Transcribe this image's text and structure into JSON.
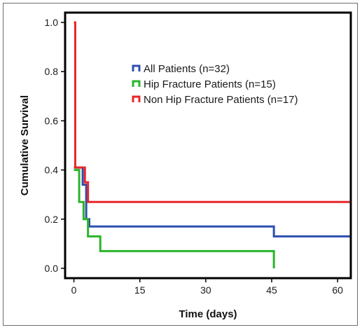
{
  "chart_data": {
    "type": "line",
    "title": "",
    "xlabel": "Time (days)",
    "ylabel": "Cumulative Survival",
    "xlim": [
      -2,
      63
    ],
    "ylim": [
      -0.04,
      1.04
    ],
    "x_ticks": [
      0,
      15,
      30,
      45,
      60
    ],
    "y_ticks": [
      0.0,
      0.2,
      0.4,
      0.6,
      0.8,
      1.0
    ],
    "y_tick_labels": [
      "0.0",
      "0.2",
      "0.4",
      "0.6",
      "0.8",
      "1.0"
    ],
    "grid": false,
    "legend_position": "top-right",
    "step": true,
    "series": [
      {
        "name": "All Patients (n=32)",
        "color": "#2d4fb0",
        "points": [
          [
            0,
            0.41
          ],
          [
            2,
            0.34
          ],
          [
            2.8,
            0.2
          ],
          [
            3.5,
            0.17
          ],
          [
            45.5,
            0.13
          ],
          [
            63,
            0.13
          ]
        ]
      },
      {
        "name": "Hip Fracture Patients (n=15)",
        "color": "#2ab52a",
        "points": [
          [
            0,
            0.4
          ],
          [
            1.2,
            0.27
          ],
          [
            2.2,
            0.2
          ],
          [
            3.2,
            0.13
          ],
          [
            6,
            0.07
          ],
          [
            45.5,
            0.07
          ],
          [
            45.5,
            0.0
          ]
        ]
      },
      {
        "name": "Non Hip Fracture Patients (n=17)",
        "color": "#e8262a",
        "points": [
          [
            0,
            1.0
          ],
          [
            0.3,
            0.41
          ],
          [
            2.5,
            0.35
          ],
          [
            3.2,
            0.27
          ],
          [
            63,
            0.27
          ]
        ]
      }
    ]
  }
}
